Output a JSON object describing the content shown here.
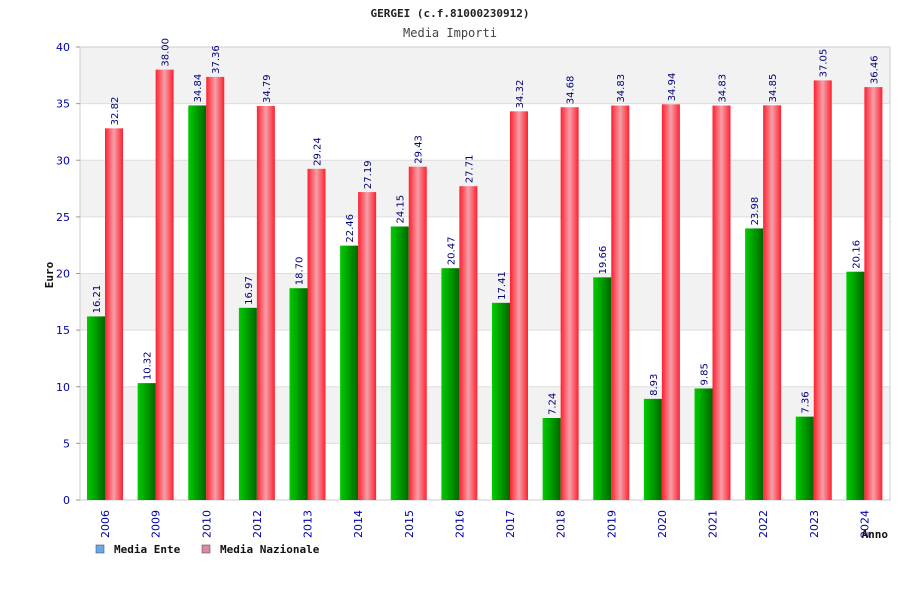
{
  "chart_data": {
    "type": "bar",
    "title": "GERGEI (c.f.81000230912)",
    "subtitle": "Media Importi",
    "xlabel": "Anno",
    "ylabel": "Euro",
    "ylim": [
      0,
      40
    ],
    "yticks": [
      0,
      5,
      10,
      15,
      20,
      25,
      30,
      35,
      40
    ],
    "grid": true,
    "legend_position": "bottom-left",
    "categories": [
      "2006",
      "2009",
      "2010",
      "2012",
      "2013",
      "2014",
      "2015",
      "2016",
      "2017",
      "2018",
      "2019",
      "2020",
      "2021",
      "2022",
      "2023",
      "2024"
    ],
    "series": [
      {
        "name": "Media Ente",
        "color": "#00aa00",
        "legend_color": "#66aaee",
        "values": [
          16.21,
          10.32,
          34.84,
          16.97,
          18.7,
          22.46,
          24.15,
          20.47,
          17.41,
          7.24,
          19.66,
          8.93,
          9.85,
          23.98,
          7.36,
          20.16
        ],
        "labels": [
          "16.21",
          "10.32",
          "34.84",
          "16.97",
          "18.70",
          "22.46",
          "24.15",
          "20.47",
          "17.41",
          "7.24",
          "19.66",
          "8.93",
          "9.85",
          "23.98",
          "7.36",
          "20.16"
        ]
      },
      {
        "name": "Media Nazionale",
        "color": "#ee2233",
        "legend_color": "#dd88aa",
        "values": [
          32.82,
          38.0,
          37.36,
          34.79,
          29.24,
          27.19,
          29.43,
          27.71,
          34.32,
          34.68,
          34.83,
          34.94,
          34.83,
          34.85,
          37.05,
          36.46
        ],
        "labels": [
          "32.82",
          "38.00",
          "37.36",
          "34.79",
          "29.24",
          "27.19",
          "29.43",
          "27.71",
          "34.32",
          "34.68",
          "34.83",
          "34.94",
          "34.83",
          "34.85",
          "37.05",
          "36.46"
        ]
      }
    ]
  }
}
